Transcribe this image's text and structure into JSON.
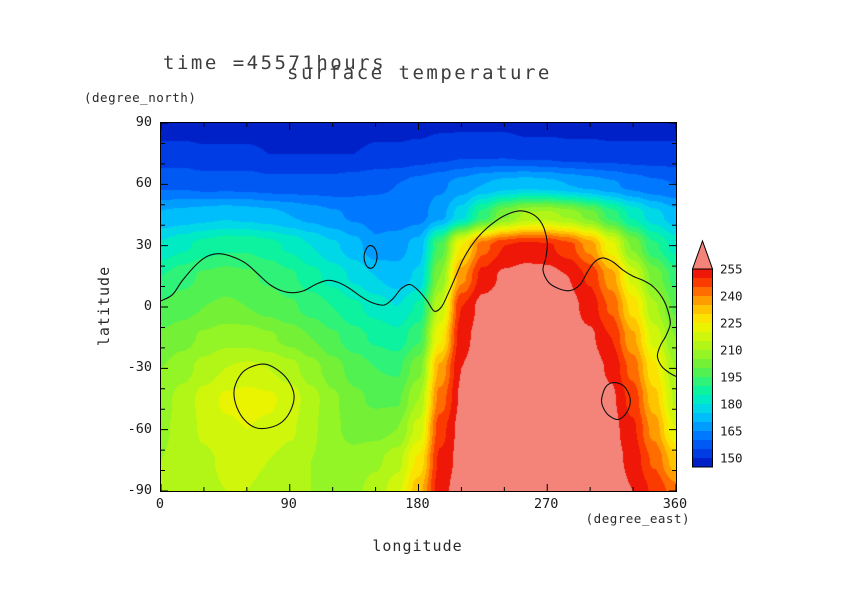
{
  "chart_data": {
    "type": "heatmap",
    "subtype": "filled-contour-map",
    "title": "surface temperature",
    "time_label": "time =45571hours",
    "xlabel": "longitude",
    "x_units": "(degree_east)",
    "ylabel": "latitude",
    "y_units": "(degree_north)",
    "xlim": [
      0,
      360
    ],
    "ylim": [
      -90,
      90
    ],
    "x_ticks": [
      0,
      90,
      180,
      270,
      360
    ],
    "y_ticks": [
      90,
      60,
      30,
      0,
      -30,
      -60,
      -90
    ],
    "x_minor_step": 30,
    "y_minor_step": 10,
    "frame_color": "#000000",
    "text_color": "#3d3d3d",
    "contour_line_color": "#101010",
    "colorbar": {
      "min": 145,
      "step": 5,
      "labels": [
        255,
        240,
        225,
        210,
        195,
        180,
        165,
        150
      ],
      "palette": [
        "#0021c8",
        "#003ce4",
        "#0059f2",
        "#0078ff",
        "#009cff",
        "#00bdfc",
        "#00d8e8",
        "#00eac4",
        "#0cf29e",
        "#2ef378",
        "#52f152",
        "#74f136",
        "#93f426",
        "#b2f618",
        "#d0f60c",
        "#eaf400",
        "#fbe200",
        "#ffc400",
        "#ff9c00",
        "#ff6c00",
        "#fb3a00",
        "#ee1708",
        "#f4837a"
      ]
    },
    "grid": {
      "lon": [
        0,
        15,
        30,
        45,
        60,
        75,
        90,
        105,
        120,
        135,
        150,
        165,
        180,
        195,
        210,
        225,
        240,
        255,
        270,
        285,
        300,
        315,
        330,
        345,
        360
      ],
      "lat": [
        90,
        75,
        60,
        45,
        30,
        15,
        0,
        -15,
        -30,
        -45,
        -60,
        -75,
        -90
      ],
      "values": [
        [
          147,
          147,
          147,
          147,
          147,
          147,
          147,
          147,
          147,
          147,
          148,
          148,
          148,
          149,
          149,
          149,
          149,
          148,
          148,
          148,
          148,
          147,
          147,
          147,
          147
        ],
        [
          152,
          152,
          151,
          151,
          151,
          150,
          150,
          150,
          150,
          150,
          151,
          151,
          152,
          153,
          154,
          154,
          154,
          153,
          153,
          152,
          152,
          152,
          152,
          152,
          152
        ],
        [
          159,
          159,
          158,
          158,
          158,
          157,
          157,
          157,
          157,
          158,
          159,
          160,
          162,
          164,
          167,
          170,
          172,
          173,
          172,
          170,
          168,
          166,
          163,
          161,
          160
        ],
        [
          171,
          172,
          173,
          174,
          173,
          172,
          170,
          168,
          166,
          164,
          163,
          162,
          163,
          168,
          178,
          192,
          204,
          211,
          212,
          209,
          203,
          193,
          184,
          177,
          172
        ],
        [
          181,
          184,
          187,
          189,
          189,
          187,
          184,
          180,
          176,
          172,
          166,
          168,
          172,
          196,
          225,
          243,
          250,
          252,
          251,
          247,
          238,
          222,
          204,
          191,
          183
        ],
        [
          190,
          193,
          196,
          197,
          196,
          194,
          191,
          187,
          183,
          179,
          175,
          172,
          176,
          205,
          238,
          252,
          256,
          257,
          257,
          255,
          249,
          237,
          218,
          203,
          193
        ],
        [
          196,
          198,
          200,
          201,
          200,
          198,
          196,
          193,
          190,
          186,
          183,
          180,
          186,
          215,
          250,
          257,
          258,
          258,
          258,
          257,
          253,
          244,
          228,
          211,
          199
        ],
        [
          201,
          203,
          206,
          208,
          208,
          206,
          203,
          200,
          196,
          192,
          189,
          187,
          194,
          224,
          253,
          258,
          259,
          259,
          259,
          258,
          256,
          250,
          236,
          218,
          205
        ],
        [
          205,
          208,
          212,
          215,
          216,
          215,
          212,
          207,
          202,
          198,
          195,
          194,
          203,
          236,
          255,
          259,
          260,
          260,
          260,
          259,
          258,
          254,
          243,
          226,
          210
        ],
        [
          208,
          212,
          217,
          221,
          222,
          221,
          218,
          212,
          206,
          201,
          199,
          199,
          210,
          242,
          256,
          259,
          261,
          261,
          261,
          260,
          259,
          256,
          248,
          232,
          214
        ],
        [
          209,
          212,
          216,
          219,
          220,
          219,
          216,
          211,
          206,
          203,
          203,
          205,
          217,
          248,
          257,
          260,
          261,
          261,
          261,
          261,
          260,
          257,
          251,
          238,
          220
        ],
        [
          210,
          212,
          214,
          216,
          216,
          215,
          213,
          210,
          208,
          207,
          209,
          213,
          226,
          251,
          257,
          260,
          261,
          261,
          261,
          261,
          260,
          258,
          253,
          244,
          232
        ],
        [
          211,
          212,
          214,
          215,
          215,
          214,
          212,
          210,
          209,
          209,
          212,
          218,
          233,
          253,
          258,
          260,
          261,
          261,
          261,
          261,
          261,
          259,
          255,
          249,
          242
        ]
      ]
    },
    "topo_contour": {
      "main": [
        [
          0,
          3
        ],
        [
          8,
          6
        ],
        [
          15,
          13
        ],
        [
          25,
          21
        ],
        [
          33,
          25
        ],
        [
          42,
          26
        ],
        [
          52,
          24
        ],
        [
          60,
          21
        ],
        [
          68,
          16
        ],
        [
          76,
          11
        ],
        [
          84,
          8
        ],
        [
          92,
          7
        ],
        [
          100,
          8
        ],
        [
          108,
          11
        ],
        [
          116,
          13
        ],
        [
          124,
          12
        ],
        [
          132,
          9
        ],
        [
          140,
          5
        ],
        [
          148,
          2
        ],
        [
          156,
          1
        ],
        [
          162,
          4
        ],
        [
          168,
          9
        ],
        [
          174,
          11
        ],
        [
          180,
          8
        ],
        [
          186,
          3
        ],
        [
          191,
          -2
        ],
        [
          196,
          0
        ],
        [
          201,
          7
        ],
        [
          206,
          15
        ],
        [
          211,
          23
        ],
        [
          217,
          30
        ],
        [
          224,
          36
        ],
        [
          232,
          41
        ],
        [
          241,
          45
        ],
        [
          250,
          47
        ],
        [
          258,
          46
        ],
        [
          264,
          43
        ],
        [
          268,
          38
        ],
        [
          270,
          31
        ],
        [
          269,
          24
        ],
        [
          267,
          18
        ],
        [
          271,
          12
        ],
        [
          278,
          9
        ],
        [
          286,
          8
        ],
        [
          293,
          11
        ],
        [
          298,
          17
        ],
        [
          303,
          22
        ],
        [
          309,
          24
        ],
        [
          316,
          22
        ],
        [
          323,
          18
        ],
        [
          330,
          15
        ],
        [
          337,
          13
        ],
        [
          344,
          10
        ],
        [
          350,
          5
        ],
        [
          354,
          -1
        ],
        [
          356,
          -8
        ],
        [
          353,
          -14
        ],
        [
          349,
          -19
        ],
        [
          347,
          -24
        ],
        [
          350,
          -29
        ],
        [
          355,
          -32
        ],
        [
          360,
          -34
        ]
      ],
      "loops": [
        [
          [
            142,
            25
          ],
          [
            144,
            29
          ],
          [
            147,
            30
          ],
          [
            150,
            28
          ],
          [
            151,
            24
          ],
          [
            149,
            20
          ],
          [
            146,
            19
          ],
          [
            143,
            21
          ]
        ],
        [
          [
            52,
            -38
          ],
          [
            57,
            -32
          ],
          [
            64,
            -29
          ],
          [
            73,
            -28
          ],
          [
            82,
            -31
          ],
          [
            89,
            -36
          ],
          [
            93,
            -43
          ],
          [
            91,
            -50
          ],
          [
            85,
            -56
          ],
          [
            76,
            -59
          ],
          [
            66,
            -59
          ],
          [
            58,
            -55
          ],
          [
            53,
            -49
          ],
          [
            51,
            -43
          ]
        ],
        [
          [
            308,
            -45
          ],
          [
            311,
            -39
          ],
          [
            317,
            -37
          ],
          [
            324,
            -39
          ],
          [
            328,
            -45
          ],
          [
            326,
            -51
          ],
          [
            320,
            -55
          ],
          [
            313,
            -53
          ],
          [
            309,
            -49
          ]
        ]
      ]
    }
  }
}
